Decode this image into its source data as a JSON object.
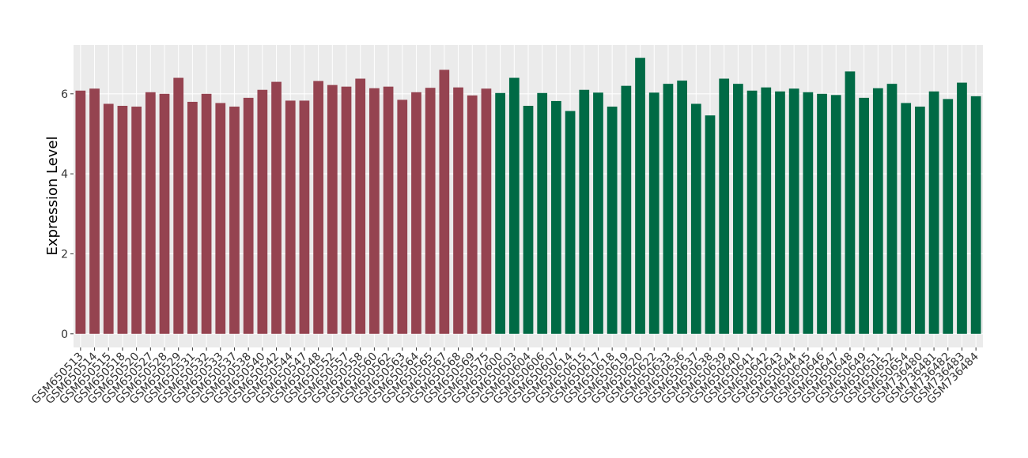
{
  "chart_data": {
    "type": "bar",
    "y_label": "Expression Level",
    "categories": [
      "GSM650513",
      "GSM650514",
      "GSM650515",
      "GSM650518",
      "GSM650520",
      "GSM650527",
      "GSM650528",
      "GSM650529",
      "GSM650531",
      "GSM650532",
      "GSM650533",
      "GSM650537",
      "GSM650538",
      "GSM650540",
      "GSM650542",
      "GSM650544",
      "GSM650547",
      "GSM650548",
      "GSM650552",
      "GSM650557",
      "GSM650558",
      "GSM650560",
      "GSM650562",
      "GSM650563",
      "GSM650564",
      "GSM650565",
      "GSM650567",
      "GSM650568",
      "GSM650569",
      "GSM650575",
      "GSM650600",
      "GSM650603",
      "GSM650604",
      "GSM650606",
      "GSM650607",
      "GSM650614",
      "GSM650615",
      "GSM650617",
      "GSM650618",
      "GSM650619",
      "GSM650620",
      "GSM650622",
      "GSM650633",
      "GSM650636",
      "GSM650637",
      "GSM650638",
      "GSM650639",
      "GSM650640",
      "GSM650641",
      "GSM650642",
      "GSM650643",
      "GSM650644",
      "GSM650645",
      "GSM650646",
      "GSM650647",
      "GSM650648",
      "GSM650649",
      "GSM650651",
      "GSM650652",
      "GSM650654",
      "GSM736480",
      "GSM736481",
      "GSM736482",
      "GSM736483",
      "GSM736484"
    ],
    "values": [
      6.08,
      6.13,
      5.75,
      5.7,
      5.68,
      6.04,
      6.0,
      6.4,
      5.8,
      6.0,
      5.77,
      5.68,
      5.9,
      6.1,
      6.3,
      5.83,
      5.83,
      6.32,
      6.22,
      6.18,
      6.38,
      6.14,
      6.18,
      5.85,
      6.04,
      6.15,
      6.6,
      6.16,
      5.96,
      6.13,
      6.02,
      6.4,
      5.7,
      6.02,
      5.82,
      5.57,
      6.1,
      6.03,
      5.68,
      6.2,
      6.9,
      6.03,
      6.25,
      6.33,
      5.75,
      5.46,
      6.38,
      6.25,
      6.08,
      6.16,
      6.06,
      6.13,
      6.04,
      6.0,
      5.97,
      6.56,
      5.9,
      6.14,
      6.25,
      5.77,
      5.68,
      6.06,
      5.87,
      6.28,
      5.94
    ],
    "colors": [
      "#954350",
      "#954350",
      "#954350",
      "#954350",
      "#954350",
      "#954350",
      "#954350",
      "#954350",
      "#954350",
      "#954350",
      "#954350",
      "#954350",
      "#954350",
      "#954350",
      "#954350",
      "#954350",
      "#954350",
      "#954350",
      "#954350",
      "#954350",
      "#954350",
      "#954350",
      "#954350",
      "#954350",
      "#954350",
      "#954350",
      "#954350",
      "#954350",
      "#954350",
      "#954350",
      "#006a45",
      "#006a45",
      "#006a45",
      "#006a45",
      "#006a45",
      "#006a45",
      "#006a45",
      "#006a45",
      "#006a45",
      "#006a45",
      "#006a45",
      "#006a45",
      "#006a45",
      "#006a45",
      "#006a45",
      "#006a45",
      "#006a45",
      "#006a45",
      "#006a45",
      "#006a45",
      "#006a45",
      "#006a45",
      "#006a45",
      "#006a45",
      "#006a45",
      "#006a45",
      "#006a45",
      "#006a45",
      "#006a45",
      "#006a45",
      "#006a45",
      "#006a45",
      "#006a45",
      "#006a45",
      "#006a45"
    ],
    "ylim": [
      -0.34,
      7.22
    ],
    "yticks": [
      0,
      2,
      4,
      6
    ],
    "grid": true
  }
}
